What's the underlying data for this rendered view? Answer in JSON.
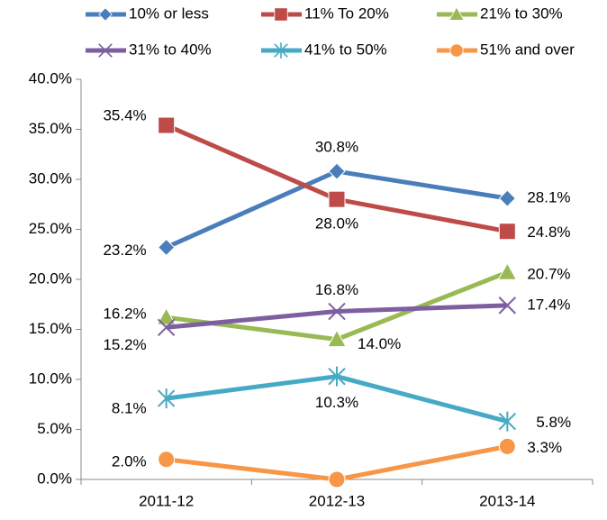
{
  "chart_data": {
    "type": "line",
    "categories": [
      "2011-12",
      "2012-13",
      "2013-14"
    ],
    "series": [
      {
        "name": "10% or less",
        "color": "#4a7ebb",
        "marker": "diamond",
        "values": [
          23.2,
          30.8,
          28.1
        ],
        "value_labels": [
          "23.2%",
          "30.8%",
          "28.1%"
        ]
      },
      {
        "name": "11% To 20%",
        "color": "#be4b48",
        "marker": "square",
        "values": [
          35.4,
          28.0,
          24.8
        ],
        "value_labels": [
          "35.4%",
          "28.0%",
          "24.8%"
        ]
      },
      {
        "name": "21% to 30%",
        "color": "#98b954",
        "marker": "triangle",
        "values": [
          16.2,
          14.0,
          20.7
        ],
        "value_labels": [
          "16.2%",
          "14.0%",
          "20.7%"
        ]
      },
      {
        "name": "31% to 40%",
        "color": "#7d5fa0",
        "marker": "x",
        "values": [
          15.2,
          16.8,
          17.4
        ],
        "value_labels": [
          "15.2%",
          "16.8%",
          "17.4%"
        ]
      },
      {
        "name": "41% to 50%",
        "color": "#46aac5",
        "marker": "star",
        "values": [
          8.1,
          10.3,
          5.8
        ],
        "value_labels": [
          "8.1%",
          "10.3%",
          "5.8%"
        ]
      },
      {
        "name": "51% and over",
        "color": "#f79646",
        "marker": "circle",
        "values": [
          2.0,
          0.0,
          3.3
        ],
        "value_labels": [
          "2.0%",
          null,
          "3.3%"
        ]
      }
    ],
    "ylim": [
      0,
      40
    ],
    "yticks": [
      {
        "value": 0,
        "label": "0.0%"
      },
      {
        "value": 5,
        "label": "5.0%"
      },
      {
        "value": 10,
        "label": "10.0%"
      },
      {
        "value": 15,
        "label": "15.0%"
      },
      {
        "value": 20,
        "label": "20.0%"
      },
      {
        "value": 25,
        "label": "25.0%"
      },
      {
        "value": 30,
        "label": "30.0%"
      },
      {
        "value": 35,
        "label": "35.0%"
      },
      {
        "value": 40,
        "label": "40.0%"
      }
    ],
    "legend": "top",
    "grid": false
  }
}
